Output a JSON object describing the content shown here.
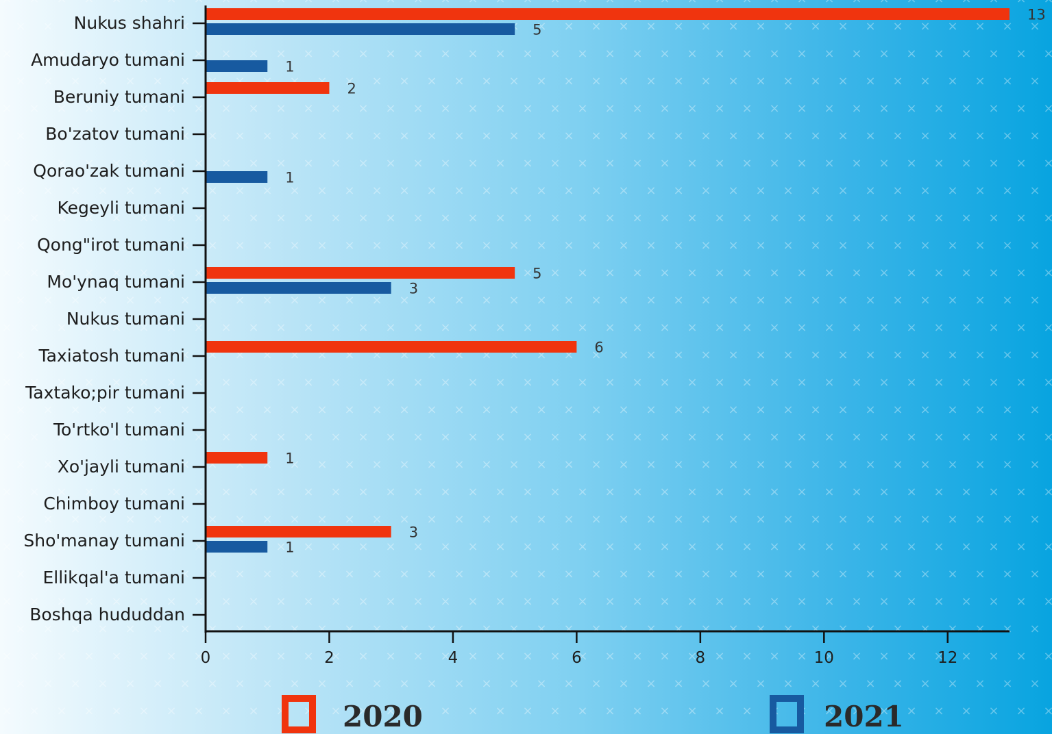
{
  "chart_data": {
    "type": "bar",
    "orientation": "horizontal",
    "categories": [
      "Nukus shahri",
      "Amudaryo tumani",
      "Beruniy tumani",
      "Bo'zatov tumani",
      "Qorao'zak tumani",
      "Kegeyli tumani",
      "Qong\"irot tumani",
      "Mo'ynaq tumani",
      "Nukus tumani",
      "Taxiatosh tumani",
      "Taxtako;pir tumani",
      "To'rtko'l tumani",
      "Xo'jayli tumani",
      "Chimboy tumani",
      "Sho'manay tumani",
      "Ellikqal'a tumani",
      "Boshqa hududdan"
    ],
    "series": [
      {
        "name": "2020",
        "color": "#f0340e",
        "values": [
          13,
          0,
          2,
          0,
          0,
          0,
          0,
          5,
          0,
          6,
          0,
          0,
          1,
          0,
          3,
          0,
          0
        ]
      },
      {
        "name": "2021",
        "color": "#175aa0",
        "values": [
          5,
          1,
          0,
          0,
          1,
          0,
          0,
          3,
          0,
          0,
          0,
          0,
          0,
          0,
          1,
          0,
          0
        ]
      }
    ],
    "xlim": [
      0,
      13
    ],
    "xticks": [
      0,
      2,
      4,
      6,
      8,
      10,
      12
    ],
    "grid": false,
    "legend_position": "bottom",
    "title": "",
    "xlabel": "",
    "ylabel": ""
  }
}
